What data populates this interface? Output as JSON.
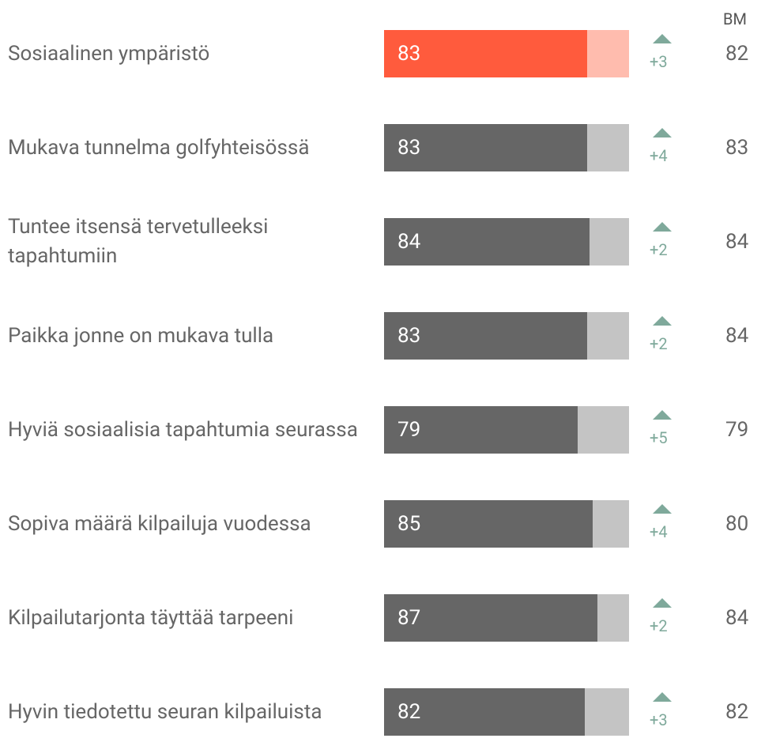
{
  "chart_data": {
    "type": "bar",
    "categories": [
      "Sosiaalinen ympäristö",
      "Mukava tunnelma golfyhteisössä",
      "Tuntee itsensä tervetulleeksi tapahtumiin",
      "Paikka jonne on mukava tulla",
      "Hyviä sosiaalisia tapahtumia seurassa",
      "Sopiva määrä kilpailuja vuodessa",
      "Kilpailutarjonta täyttää tarpeeni",
      "Hyvin tiedotettu seuran kilpailuista"
    ],
    "values": [
      83,
      83,
      84,
      83,
      79,
      85,
      87,
      82
    ],
    "colors": [
      "#ff5b3d",
      "#666666",
      "#666666",
      "#666666",
      "#666666",
      "#666666",
      "#666666",
      "#666666"
    ],
    "track_colors": [
      "#ffbcae",
      "#c4c4c4",
      "#c4c4c4",
      "#c4c4c4",
      "#c4c4c4",
      "#c4c4c4",
      "#c4c4c4",
      "#c4c4c4"
    ],
    "xlim": [
      0,
      100
    ],
    "changes": {
      "values": [
        3,
        4,
        2,
        2,
        5,
        4,
        2,
        3
      ],
      "value_labels": [
        "+3",
        "+4",
        "+2",
        "+2",
        "+5",
        "+4",
        "+2",
        "+3"
      ],
      "color": "#7fa99b"
    },
    "bm_label": "BM",
    "bm_values": [
      82,
      83,
      84,
      84,
      79,
      80,
      84,
      82
    ]
  }
}
